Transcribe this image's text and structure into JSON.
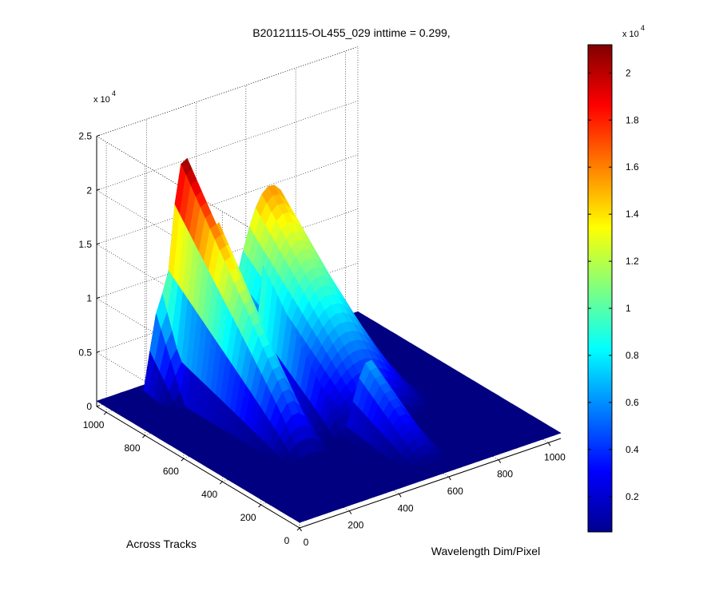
{
  "chart_data": {
    "type": "surface",
    "title": "B20121115-OL455_029 inttime = 0.299,",
    "xlabel": "Wavelength Dim/Pixel",
    "ylabel": "Across Tracks",
    "zlabel": "",
    "xlim": [
      0,
      1050
    ],
    "ylim": [
      0,
      1050
    ],
    "zlim": [
      0,
      25000
    ],
    "x_ticks": [
      "0",
      "200",
      "400",
      "600",
      "800",
      "1000"
    ],
    "y_ticks": [
      "0",
      "200",
      "400",
      "600",
      "800",
      "1000"
    ],
    "z_ticks": [
      "0",
      "0.5",
      "1",
      "1.5",
      "2",
      "2.5"
    ],
    "z_exponent": "x 10",
    "z_exponent_power": "4",
    "grid": true,
    "colormap": "jet",
    "colorbar": {
      "range": [
        500,
        21200
      ],
      "ticks": [
        "0.2",
        "0.4",
        "0.6",
        "0.8",
        "1",
        "1.2",
        "1.4",
        "1.6",
        "1.8",
        "2"
      ],
      "exponent": "x 10",
      "exponent_power": "4"
    },
    "ridges": [
      {
        "x0": 200,
        "x1": 430,
        "y0": 340,
        "y1": 1000,
        "peak": 21200
      },
      {
        "x0": 140,
        "x1": 320,
        "y0": 850,
        "y1": 1000,
        "peak": 9200
      },
      {
        "x0": 300,
        "x1": 440,
        "y0": 420,
        "y1": 900,
        "peak": 15800
      },
      {
        "x0": 430,
        "x1": 520,
        "y0": 380,
        "y1": 820,
        "peak": 12500
      },
      {
        "x0": 420,
        "x1": 900,
        "y0": 360,
        "y1": 1000,
        "peak": 15800
      },
      {
        "x0": 480,
        "x1": 700,
        "y0": 60,
        "y1": 420,
        "peak": 7000
      }
    ]
  }
}
